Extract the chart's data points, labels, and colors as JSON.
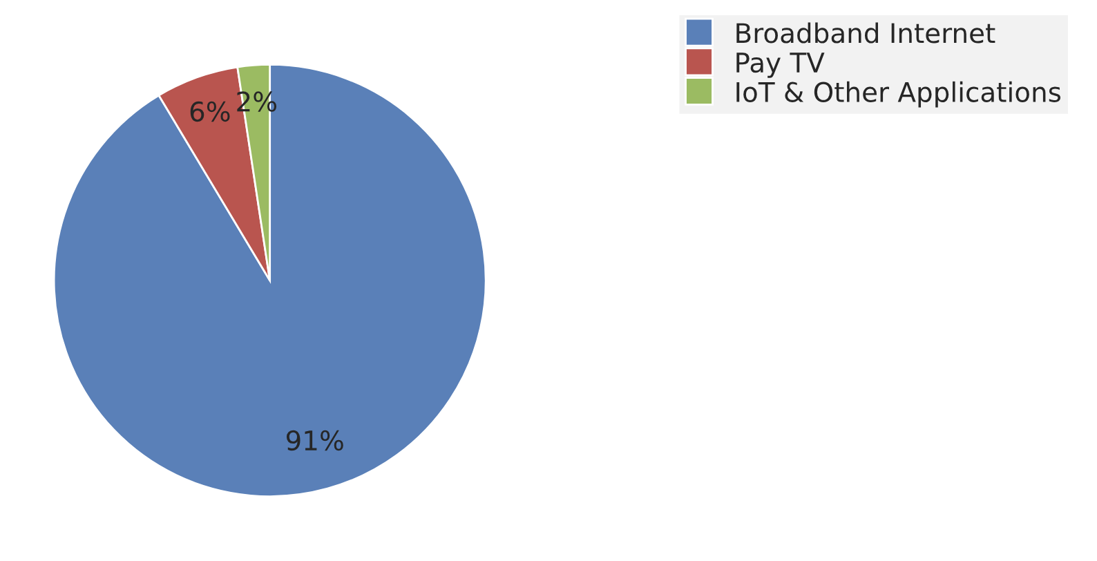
{
  "chart_data": {
    "type": "pie",
    "categories": [
      "Broadband Internet",
      "Pay TV",
      "IoT & Other Applications"
    ],
    "values": [
      91.4,
      6.2,
      2.4
    ],
    "value_labels": [
      "91%",
      "6%",
      "2%"
    ],
    "colors": [
      "#5a80b8",
      "#b9554f",
      "#9bbb62"
    ],
    "legend": "top right"
  }
}
